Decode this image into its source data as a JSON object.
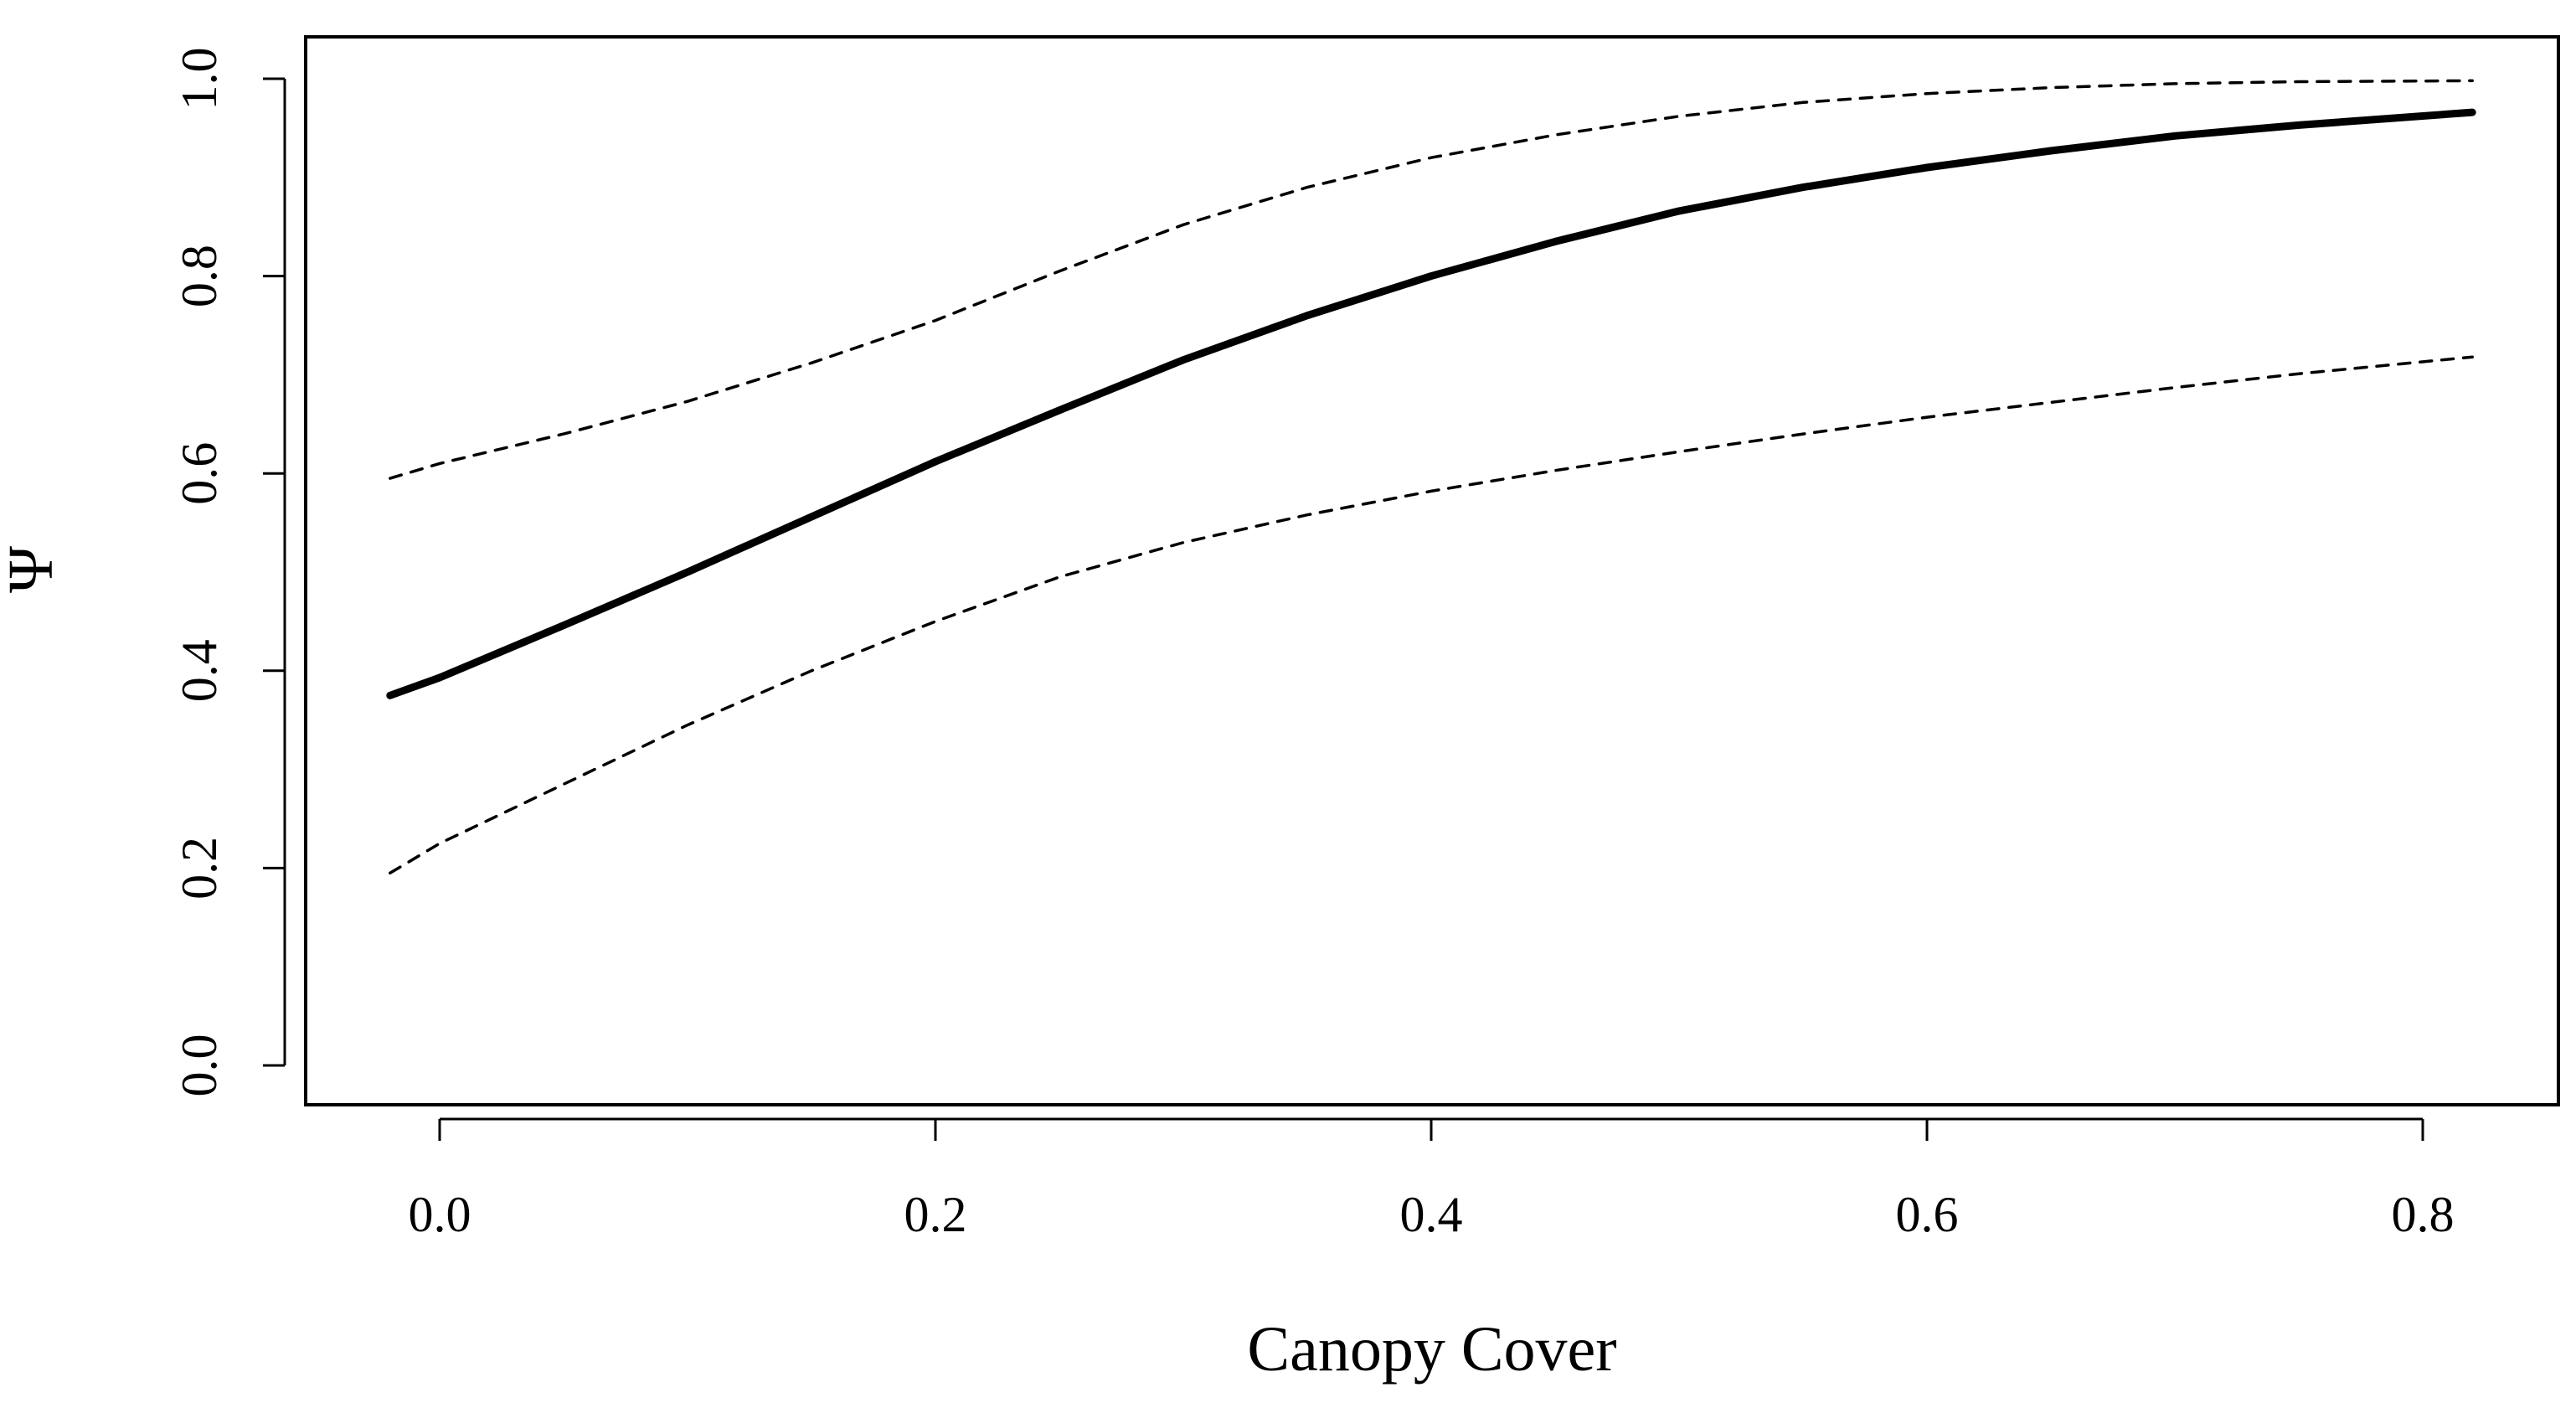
{
  "chart_data": {
    "type": "line",
    "xlabel": "Canopy Cover",
    "ylabel": "Ψ",
    "xlim": [
      -0.02,
      0.82
    ],
    "ylim": [
      0.0,
      1.0
    ],
    "x_ticks": [
      0.0,
      0.2,
      0.4,
      0.6,
      0.8
    ],
    "x_tick_labels": [
      "0.0",
      "0.2",
      "0.4",
      "0.6",
      "0.8"
    ],
    "y_ticks": [
      0.0,
      0.2,
      0.4,
      0.6,
      0.8,
      1.0
    ],
    "y_tick_labels": [
      "0.0",
      "0.2",
      "0.4",
      "0.6",
      "0.8",
      "1.0"
    ],
    "grid": false,
    "x": [
      -0.02,
      0.0,
      0.05,
      0.1,
      0.15,
      0.2,
      0.25,
      0.3,
      0.35,
      0.4,
      0.45,
      0.5,
      0.55,
      0.6,
      0.65,
      0.7,
      0.75,
      0.82
    ],
    "series": [
      {
        "style": "solid",
        "values": [
          0.375,
          0.393,
          0.446,
          0.5,
          0.556,
          0.612,
          0.664,
          0.715,
          0.76,
          0.8,
          0.835,
          0.866,
          0.89,
          0.91,
          0.927,
          0.942,
          0.953,
          0.966
        ]
      },
      {
        "style": "dashed",
        "values": [
          0.595,
          0.61,
          0.64,
          0.673,
          0.712,
          0.755,
          0.805,
          0.852,
          0.89,
          0.92,
          0.943,
          0.962,
          0.976,
          0.985,
          0.991,
          0.995,
          0.997,
          0.998
        ]
      },
      {
        "style": "dashed",
        "values": [
          0.195,
          0.225,
          0.285,
          0.345,
          0.4,
          0.45,
          0.495,
          0.53,
          0.558,
          0.582,
          0.603,
          0.622,
          0.64,
          0.657,
          0.672,
          0.687,
          0.701,
          0.718
        ]
      }
    ]
  }
}
